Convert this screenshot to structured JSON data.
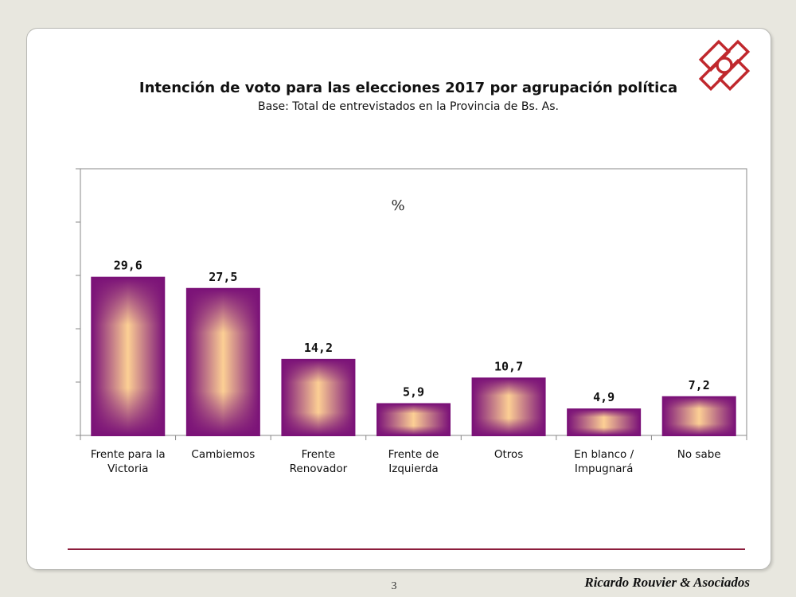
{
  "slide": {
    "page_number": "3",
    "brand": "Ricardo Rouvier & Asociados",
    "logo": "rouvier-logo"
  },
  "colors": {
    "bar_edge": "#7b1278",
    "bar_center": "#fccf94",
    "rule": "#8c1d3c",
    "logo": "#c0282d"
  },
  "chart_data": {
    "type": "bar",
    "title": "Intención de voto para las elecciones 2017 por agrupación política",
    "subtitle": "Base: Total de entrevistados en la Provincia de Bs. As.",
    "unit_label": "%",
    "categories": [
      [
        "Frente para la",
        "Victoria"
      ],
      [
        "Cambiemos"
      ],
      [
        "Frente",
        "Renovador"
      ],
      [
        "Frente de",
        "Izquierda"
      ],
      [
        "Otros"
      ],
      [
        "En blanco /",
        "Impugnará"
      ],
      [
        "No sabe"
      ]
    ],
    "values": [
      29.6,
      27.5,
      14.2,
      5.9,
      10.7,
      4.9,
      7.2
    ],
    "value_labels": [
      "29,6",
      "27,5",
      "14,2",
      "5,9",
      "10,7",
      "4,9",
      "7,2"
    ],
    "ylim": [
      0,
      50
    ],
    "ytick_step": 10,
    "ytick_labels_shown": false,
    "grid": false,
    "legend": "none"
  }
}
